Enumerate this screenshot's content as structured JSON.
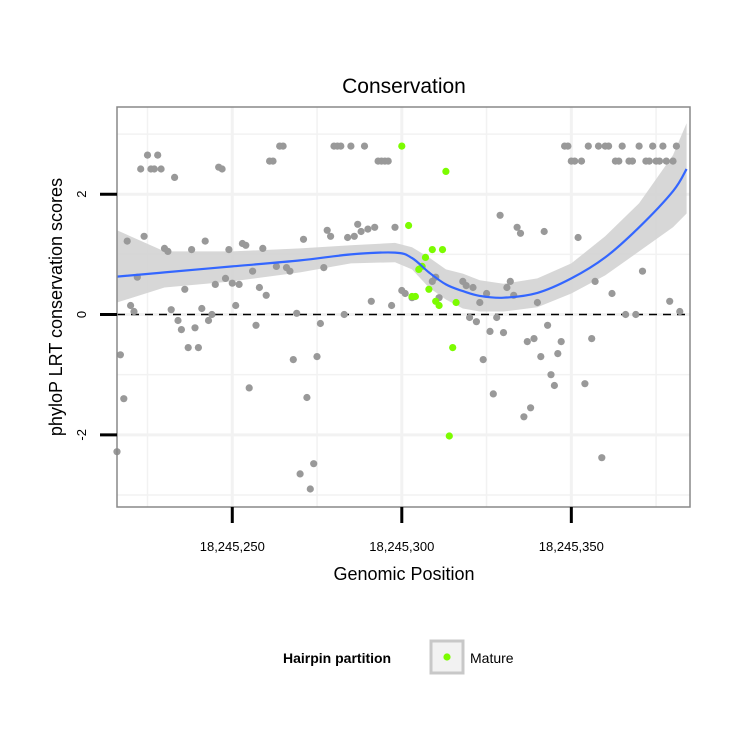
{
  "chart_data": {
    "type": "scatter",
    "title": "Conservation",
    "xlabel": "Genomic Position",
    "ylabel": "phyloP LRT conservation scores",
    "xlim": [
      18245216,
      18245385
    ],
    "ylim": [
      -3.2,
      3.45
    ],
    "x_ticks": [
      18245250,
      18245300,
      18245350
    ],
    "x_tick_labels": [
      "18,245,250",
      "18,245,300",
      "18,245,350"
    ],
    "y_ticks": [
      -2,
      0,
      2
    ],
    "y_tick_labels": [
      "-2",
      "0",
      "2"
    ],
    "reference_line": 0,
    "legend": {
      "title": "Hairpin partition",
      "entries": [
        {
          "label": "Mature",
          "color": "#7cfc00"
        }
      ],
      "position": "bottom"
    },
    "colors": {
      "other": "#999999",
      "mature": "#7cfc00",
      "smooth": "#3366ff",
      "band": "#d3d3d3",
      "grid": "#f2f2f2",
      "border": "#888888"
    },
    "series": [
      {
        "name": "Other",
        "points": [
          [
            18245216,
            -2.28
          ],
          [
            18245217,
            -0.67
          ],
          [
            18245218,
            -1.4
          ],
          [
            18245219,
            1.22
          ],
          [
            18245220,
            0.15
          ],
          [
            18245221,
            0.05
          ],
          [
            18245222,
            0.62
          ],
          [
            18245223,
            2.42
          ],
          [
            18245224,
            1.3
          ],
          [
            18245225,
            2.65
          ],
          [
            18245226,
            2.42
          ],
          [
            18245227,
            2.42
          ],
          [
            18245228,
            2.65
          ],
          [
            18245229,
            2.42
          ],
          [
            18245230,
            1.1
          ],
          [
            18245231,
            1.05
          ],
          [
            18245232,
            0.08
          ],
          [
            18245233,
            2.28
          ],
          [
            18245234,
            -0.1
          ],
          [
            18245235,
            -0.25
          ],
          [
            18245236,
            0.42
          ],
          [
            18245237,
            -0.55
          ],
          [
            18245238,
            1.08
          ],
          [
            18245239,
            -0.22
          ],
          [
            18245240,
            -0.55
          ],
          [
            18245241,
            0.1
          ],
          [
            18245242,
            1.22
          ],
          [
            18245243,
            -0.1
          ],
          [
            18245244,
            0.0
          ],
          [
            18245245,
            0.5
          ],
          [
            18245246,
            2.45
          ],
          [
            18245247,
            2.42
          ],
          [
            18245248,
            0.6
          ],
          [
            18245249,
            1.08
          ],
          [
            18245250,
            0.52
          ],
          [
            18245251,
            0.15
          ],
          [
            18245252,
            0.5
          ],
          [
            18245253,
            1.18
          ],
          [
            18245254,
            1.15
          ],
          [
            18245255,
            -1.22
          ],
          [
            18245256,
            0.72
          ],
          [
            18245257,
            -0.18
          ],
          [
            18245258,
            0.45
          ],
          [
            18245259,
            1.1
          ],
          [
            18245260,
            0.32
          ],
          [
            18245261,
            2.55
          ],
          [
            18245262,
            2.55
          ],
          [
            18245263,
            0.8
          ],
          [
            18245264,
            2.8
          ],
          [
            18245265,
            2.8
          ],
          [
            18245266,
            0.78
          ],
          [
            18245267,
            0.72
          ],
          [
            18245268,
            -0.75
          ],
          [
            18245269,
            0.02
          ],
          [
            18245270,
            -2.65
          ],
          [
            18245271,
            1.25
          ],
          [
            18245272,
            -1.38
          ],
          [
            18245273,
            -2.9
          ],
          [
            18245274,
            -2.48
          ],
          [
            18245275,
            -0.7
          ],
          [
            18245276,
            -0.15
          ],
          [
            18245277,
            0.78
          ],
          [
            18245278,
            1.4
          ],
          [
            18245279,
            1.3
          ],
          [
            18245280,
            2.8
          ],
          [
            18245281,
            2.8
          ],
          [
            18245282,
            2.8
          ],
          [
            18245283,
            0.0
          ],
          [
            18245284,
            1.28
          ],
          [
            18245285,
            2.8
          ],
          [
            18245286,
            1.3
          ],
          [
            18245287,
            1.5
          ],
          [
            18245288,
            1.38
          ],
          [
            18245289,
            2.8
          ],
          [
            18245290,
            1.42
          ],
          [
            18245291,
            0.22
          ],
          [
            18245292,
            1.45
          ],
          [
            18245293,
            2.55
          ],
          [
            18245294,
            2.55
          ],
          [
            18245295,
            2.55
          ],
          [
            18245296,
            2.55
          ],
          [
            18245297,
            0.15
          ],
          [
            18245298,
            1.45
          ],
          [
            18245300,
            0.4
          ],
          [
            18245301,
            0.35
          ],
          [
            18245303,
            0.28
          ],
          [
            18245309,
            0.55
          ],
          [
            18245310,
            0.62
          ],
          [
            18245311,
            0.28
          ],
          [
            18245318,
            0.55
          ],
          [
            18245319,
            0.48
          ],
          [
            18245320,
            -0.05
          ],
          [
            18245321,
            0.45
          ],
          [
            18245322,
            -0.12
          ],
          [
            18245323,
            0.2
          ],
          [
            18245324,
            -0.75
          ],
          [
            18245325,
            0.35
          ],
          [
            18245326,
            -0.28
          ],
          [
            18245327,
            -1.32
          ],
          [
            18245328,
            -0.05
          ],
          [
            18245329,
            1.65
          ],
          [
            18245330,
            -0.3
          ],
          [
            18245331,
            0.45
          ],
          [
            18245332,
            0.55
          ],
          [
            18245333,
            0.32
          ],
          [
            18245334,
            1.45
          ],
          [
            18245335,
            1.35
          ],
          [
            18245336,
            -1.7
          ],
          [
            18245337,
            -0.45
          ],
          [
            18245338,
            -1.55
          ],
          [
            18245339,
            -0.4
          ],
          [
            18245340,
            0.2
          ],
          [
            18245341,
            -0.7
          ],
          [
            18245342,
            1.38
          ],
          [
            18245343,
            -0.18
          ],
          [
            18245344,
            -1.0
          ],
          [
            18245345,
            -1.18
          ],
          [
            18245346,
            -0.65
          ],
          [
            18245347,
            -0.45
          ],
          [
            18245348,
            2.8
          ],
          [
            18245349,
            2.8
          ],
          [
            18245350,
            2.55
          ],
          [
            18245351,
            2.55
          ],
          [
            18245352,
            1.28
          ],
          [
            18245353,
            2.55
          ],
          [
            18245354,
            -1.15
          ],
          [
            18245355,
            2.8
          ],
          [
            18245356,
            -0.4
          ],
          [
            18245357,
            0.55
          ],
          [
            18245358,
            2.8
          ],
          [
            18245359,
            -2.38
          ],
          [
            18245360,
            2.8
          ],
          [
            18245361,
            2.8
          ],
          [
            18245362,
            0.35
          ],
          [
            18245363,
            2.55
          ],
          [
            18245364,
            2.55
          ],
          [
            18245365,
            2.8
          ],
          [
            18245366,
            0.0
          ],
          [
            18245367,
            2.55
          ],
          [
            18245368,
            2.55
          ],
          [
            18245369,
            0.0
          ],
          [
            18245370,
            2.8
          ],
          [
            18245371,
            0.72
          ],
          [
            18245372,
            2.55
          ],
          [
            18245373,
            2.55
          ],
          [
            18245374,
            2.8
          ],
          [
            18245375,
            2.55
          ],
          [
            18245376,
            2.55
          ],
          [
            18245377,
            2.8
          ],
          [
            18245378,
            2.55
          ],
          [
            18245379,
            0.22
          ],
          [
            18245380,
            2.55
          ],
          [
            18245381,
            2.8
          ],
          [
            18245382,
            0.05
          ]
        ]
      },
      {
        "name": "Mature",
        "points": [
          [
            18245300,
            2.8
          ],
          [
            18245302,
            1.48
          ],
          [
            18245303,
            0.3
          ],
          [
            18245304,
            0.3
          ],
          [
            18245305,
            0.75
          ],
          [
            18245306,
            0.8
          ],
          [
            18245307,
            0.95
          ],
          [
            18245308,
            0.42
          ],
          [
            18245309,
            1.08
          ],
          [
            18245310,
            0.22
          ],
          [
            18245311,
            0.15
          ],
          [
            18245312,
            1.08
          ],
          [
            18245313,
            2.38
          ],
          [
            18245314,
            -2.02
          ],
          [
            18245315,
            -0.55
          ],
          [
            18245316,
            0.2
          ]
        ]
      }
    ],
    "smooth_line": {
      "x": [
        18245216,
        18245230,
        18245250,
        18245270,
        18245285,
        18245298,
        18245303,
        18245308,
        18245313,
        18245318,
        18245323,
        18245330,
        18245340,
        18245350,
        18245360,
        18245370,
        18245380,
        18245384
      ],
      "y": [
        0.63,
        0.7,
        0.8,
        0.9,
        1.0,
        1.03,
        0.94,
        0.7,
        0.5,
        0.39,
        0.31,
        0.28,
        0.36,
        0.6,
        0.95,
        1.45,
        2.05,
        2.42
      ]
    },
    "confidence_band": {
      "x": [
        18245216,
        18245230,
        18245250,
        18245270,
        18245285,
        18245298,
        18245303,
        18245308,
        18245313,
        18245318,
        18245323,
        18245330,
        18245340,
        18245350,
        18245360,
        18245370,
        18245380,
        18245384
      ],
      "lower": [
        0.2,
        0.45,
        0.55,
        0.7,
        0.85,
        0.87,
        0.75,
        0.45,
        0.25,
        0.1,
        0.05,
        0.05,
        0.12,
        0.35,
        0.65,
        1.05,
        1.45,
        1.68
      ],
      "upper": [
        1.4,
        1.05,
        1.05,
        1.1,
        1.15,
        1.19,
        1.12,
        0.95,
        0.75,
        0.68,
        0.57,
        0.51,
        0.6,
        0.85,
        1.3,
        1.85,
        2.65,
        3.18
      ]
    }
  }
}
